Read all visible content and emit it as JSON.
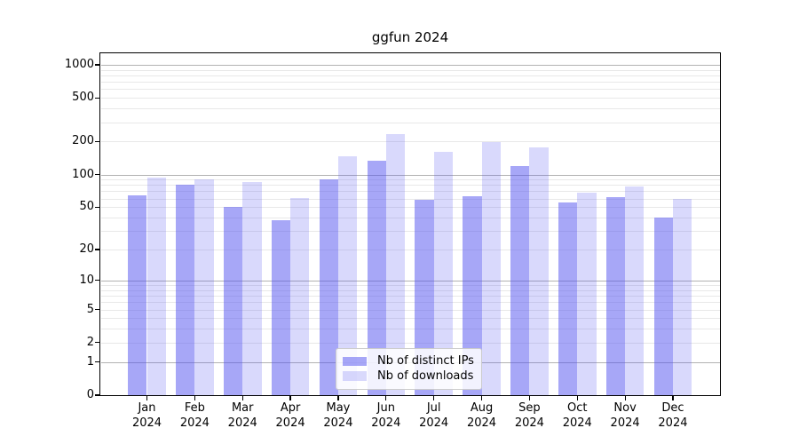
{
  "title": "ggfun 2024",
  "colors": {
    "bar_distinct_ips": "rgba(80,80,240,0.5)",
    "bar_downloads": "rgba(80,80,240,0.22)",
    "grid_major": "#b2b2b2",
    "grid_minor": "#e8e8e8",
    "axis": "#000000",
    "legend_border": "#cccccc"
  },
  "legend": {
    "entries": [
      {
        "label": "Nb of distinct IPs"
      },
      {
        "label": "Nb of downloads"
      }
    ]
  },
  "chart_data": {
    "type": "bar",
    "title": "ggfun 2024",
    "categories": [
      "Jan 2024",
      "Feb 2024",
      "Mar 2024",
      "Apr 2024",
      "May 2024",
      "Jun 2024",
      "Jul 2024",
      "Aug 2024",
      "Sep 2024",
      "Oct 2024",
      "Nov 2024",
      "Dec 2024"
    ],
    "series": [
      {
        "name": "Nb of distinct IPs",
        "color": "rgba(80,80,240,0.5)",
        "values": [
          64,
          80,
          50,
          38,
          91,
          133,
          59,
          63,
          119,
          55,
          62,
          40
        ]
      },
      {
        "name": "Nb of downloads",
        "color": "rgba(80,80,240,0.22)",
        "values": [
          93,
          90,
          85,
          61,
          146,
          235,
          161,
          198,
          176,
          68,
          77,
          60
        ]
      }
    ],
    "xlabel": "",
    "ylabel": "",
    "yscale": "log1p",
    "yticks": [
      0,
      1,
      2,
      5,
      10,
      20,
      50,
      100,
      200,
      500,
      1000
    ],
    "ylim": [
      0,
      1276
    ],
    "grid": true,
    "legend_position": "lower center"
  }
}
